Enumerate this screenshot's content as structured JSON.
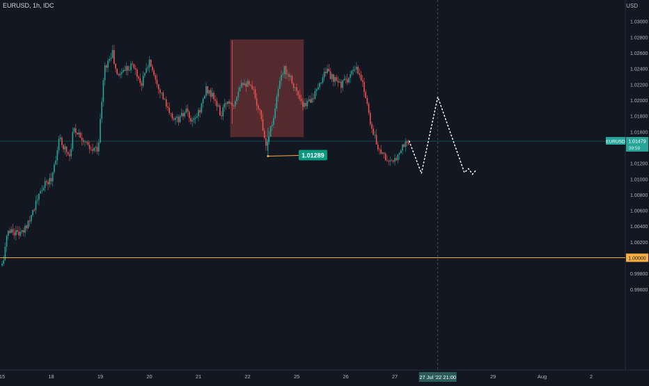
{
  "header": {
    "symbol_line": "EURUSD, 1h, IDC"
  },
  "axis": {
    "unit": "USD"
  },
  "colors": {
    "background": "#131722",
    "up": "#26a69a",
    "down": "#ef5350",
    "text": "#b2b5be",
    "highlight_zone": "#8b3a3a",
    "horizontal_line": "#f5b041",
    "price_label_bg": "#089981"
  },
  "chart_data": {
    "type": "candlestick",
    "symbol": "EURUSD",
    "timeframe": "1h",
    "source": "IDC",
    "y_axis": {
      "unit": "USD",
      "ylim": [
        0.995,
        1.032
      ],
      "ticks": [
        "1.03000",
        "1.02800",
        "1.02600",
        "1.02400",
        "1.02200",
        "1.02000",
        "1.01800",
        "1.01600",
        "1.01400",
        "1.01200",
        "1.01000",
        "1.00800",
        "1.00600",
        "1.00400",
        "1.00200",
        "1.00000",
        "0.99800",
        "0.99600"
      ]
    },
    "x_axis": {
      "ticks": [
        {
          "label": "15",
          "x": 0
        },
        {
          "label": "18",
          "x": 24
        },
        {
          "label": "19",
          "x": 48
        },
        {
          "label": "20",
          "x": 72
        },
        {
          "label": "21",
          "x": 96
        },
        {
          "label": "22",
          "x": 120
        },
        {
          "label": "25",
          "x": 144
        },
        {
          "label": "26",
          "x": 168
        },
        {
          "label": "27",
          "x": 192
        },
        {
          "label": "29",
          "x": 240
        },
        {
          "label": "Aug",
          "x": 264
        },
        {
          "label": "2",
          "x": 288
        }
      ],
      "crosshair_label": "27 Jul '22   21:00",
      "crosshair_x": 213
    },
    "price_path": [
      [
        0,
        0.999
      ],
      [
        3,
        1.0035
      ],
      [
        10,
        1.003
      ],
      [
        15,
        1.006
      ],
      [
        20,
        1.009
      ],
      [
        24,
        1.01
      ],
      [
        28,
        1.015
      ],
      [
        33,
        1.013
      ],
      [
        35,
        1.0165
      ],
      [
        40,
        1.015
      ],
      [
        43,
        1.0135
      ],
      [
        47,
        1.014
      ],
      [
        50,
        1.024
      ],
      [
        54,
        1.026
      ],
      [
        56,
        1.023
      ],
      [
        60,
        1.024
      ],
      [
        64,
        1.0245
      ],
      [
        68,
        1.022
      ],
      [
        72,
        1.025
      ],
      [
        77,
        1.0215
      ],
      [
        82,
        1.018
      ],
      [
        86,
        1.0175
      ],
      [
        90,
        1.0185
      ],
      [
        93,
        1.017
      ],
      [
        97,
        1.019
      ],
      [
        100,
        1.0215
      ],
      [
        104,
        1.02
      ],
      [
        107,
        1.018
      ],
      [
        110,
        1.02
      ],
      [
        113,
        1.0195
      ],
      [
        117,
        1.0225
      ],
      [
        120,
        1.022
      ],
      [
        123,
        1.021
      ],
      [
        126,
        1.0185
      ],
      [
        129,
        1.0145
      ],
      [
        132,
        1.017
      ],
      [
        135,
        1.0215
      ],
      [
        138,
        1.024
      ],
      [
        141,
        1.023
      ],
      [
        144,
        1.021
      ],
      [
        147,
        1.019
      ],
      [
        150,
        1.02
      ],
      [
        154,
        1.021
      ],
      [
        158,
        1.024
      ],
      [
        162,
        1.0225
      ],
      [
        166,
        1.022
      ],
      [
        170,
        1.023
      ],
      [
        173,
        1.024
      ],
      [
        177,
        1.0215
      ],
      [
        181,
        1.016
      ],
      [
        184,
        1.014
      ],
      [
        188,
        1.0125
      ],
      [
        191,
        1.0118
      ],
      [
        194,
        1.0135
      ],
      [
        197,
        1.0145
      ],
      [
        199,
        1.0148
      ]
    ],
    "highlight_zone": {
      "x": [
        111.5,
        147.5
      ],
      "y": [
        1.0153,
        1.0277
      ]
    },
    "projection": [
      [
        199,
        1.0148
      ],
      [
        205,
        1.0107
      ],
      [
        213,
        1.0204
      ],
      [
        226,
        1.0108
      ],
      [
        228,
        1.0113
      ],
      [
        230,
        1.0106
      ],
      [
        232,
        1.0112
      ]
    ],
    "annotation": {
      "label": "1.01289",
      "point_x": 130,
      "point_y": 1.01289,
      "label_x": 145
    },
    "horizontal_line": {
      "price": 1.0,
      "label": "1.00000"
    },
    "last_price": {
      "price": 1.01479,
      "symbol_label": "EURUSD",
      "price_label": "1.01479",
      "countdown": "39:59"
    }
  }
}
